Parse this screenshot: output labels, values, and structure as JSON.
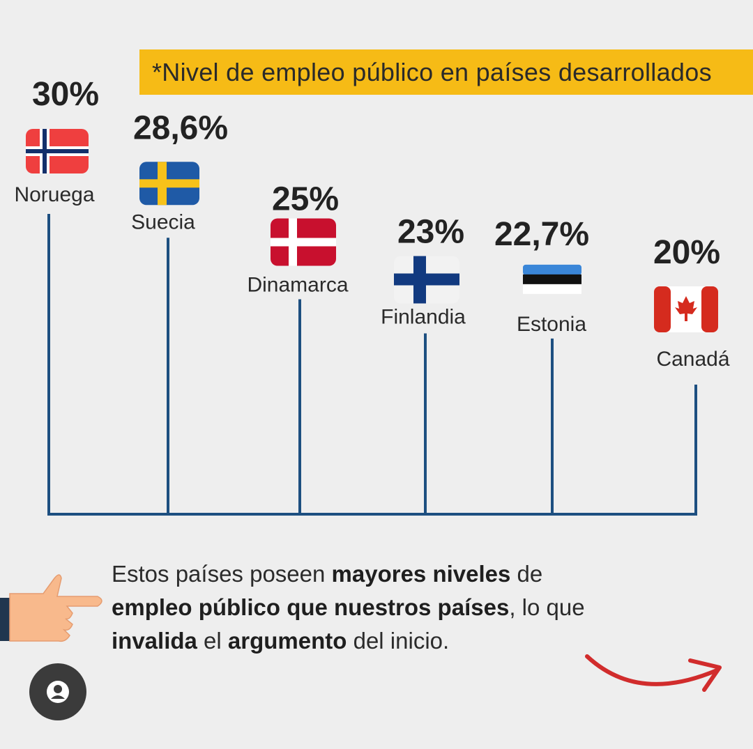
{
  "title": "*Nivel de empleo público en países desarrollados",
  "chart_data": {
    "type": "bar",
    "categories": [
      "Noruega",
      "Suecia",
      "Dinamarca",
      "Finlandia",
      "Estonia",
      "Canadá"
    ],
    "values": [
      30,
      28.6,
      25,
      23,
      22.7,
      20
    ],
    "value_labels": [
      "30%",
      "28,6%",
      "25%",
      "23%",
      "22,7%",
      "20%"
    ],
    "unit": "%",
    "flags": [
      "norway-flag",
      "sweden-flag",
      "denmark-flag",
      "finland-flag",
      "estonia-flag",
      "canada-flag"
    ]
  },
  "caption": {
    "p1": "Estos países poseen ",
    "b1": "mayores niveles",
    "p2": " de ",
    "b2": "empleo público que nuestros países",
    "p3": ", lo que ",
    "b3": "invalida",
    "p4": " el ",
    "b4": "argumento",
    "p5": " del inicio."
  },
  "icons": {
    "pointer": "pointing-hand-icon",
    "arrow": "curved-arrow-icon",
    "avatar": "user-avatar-icon"
  },
  "colors": {
    "background": "#eeeeee",
    "banner": "#f6bb16",
    "stem": "#1d4f80",
    "arrow": "#d12c2c",
    "text": "#222222"
  }
}
